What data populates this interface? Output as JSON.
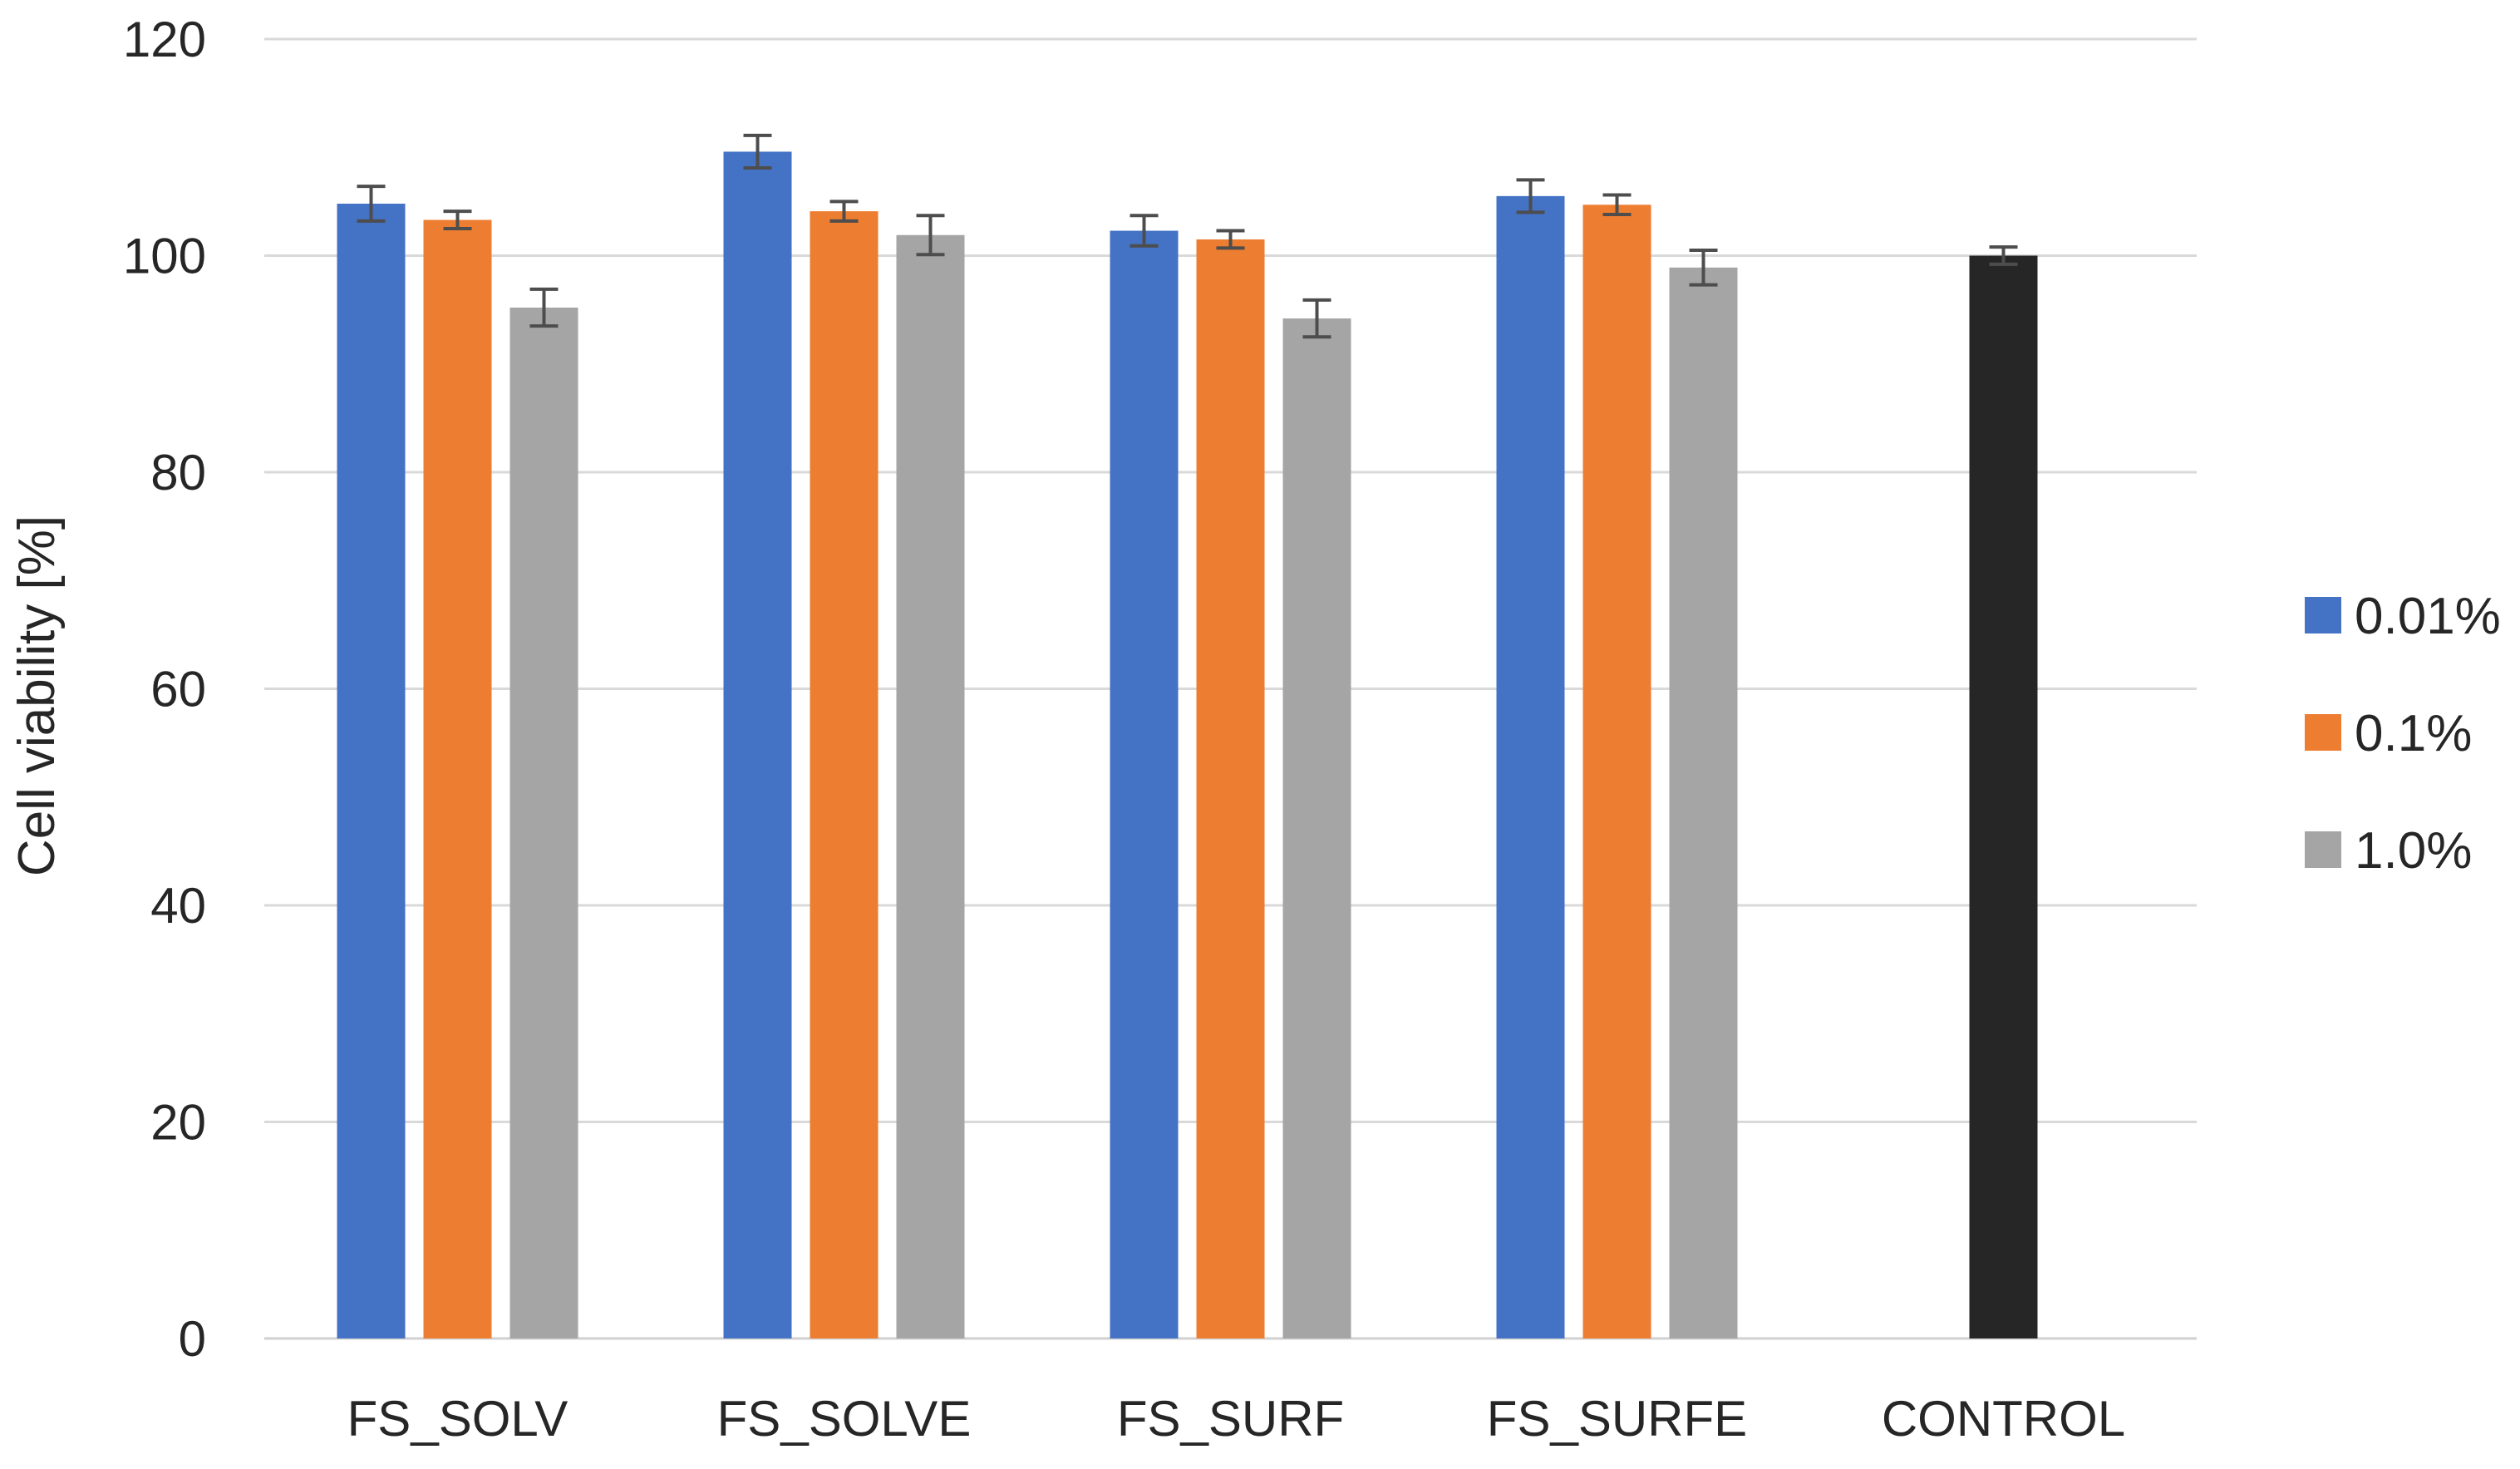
{
  "chart_data": {
    "type": "bar",
    "title": "",
    "xlabel": "",
    "ylabel": "Cell viability [%]",
    "ylim": [
      0,
      120
    ],
    "yticks": [
      0,
      20,
      40,
      60,
      80,
      100,
      120
    ],
    "grid": true,
    "legend_position": "right",
    "categories": [
      "FS_SOLV",
      "FS_SOLVE",
      "FS_SURF",
      "FS_SURFE",
      "CONTROL"
    ],
    "series": [
      {
        "name": "0.01%",
        "color": "#4472C4",
        "values": [
          104.8,
          109.6,
          102.3,
          105.5,
          null
        ],
        "errors": [
          1.6,
          1.5,
          1.4,
          1.5,
          null
        ]
      },
      {
        "name": "0.1%",
        "color": "#ED7D31",
        "values": [
          103.3,
          104.1,
          101.5,
          104.7,
          null
        ],
        "errors": [
          0.8,
          0.9,
          0.8,
          0.9,
          null
        ]
      },
      {
        "name": "1.0%",
        "color": "#A5A5A5",
        "values": [
          95.2,
          101.9,
          94.2,
          98.9,
          null
        ],
        "errors": [
          1.7,
          1.8,
          1.7,
          1.6,
          null
        ]
      }
    ],
    "control": {
      "category": "CONTROL",
      "value": 100.0,
      "error": 0.8,
      "color": "#262626"
    }
  }
}
